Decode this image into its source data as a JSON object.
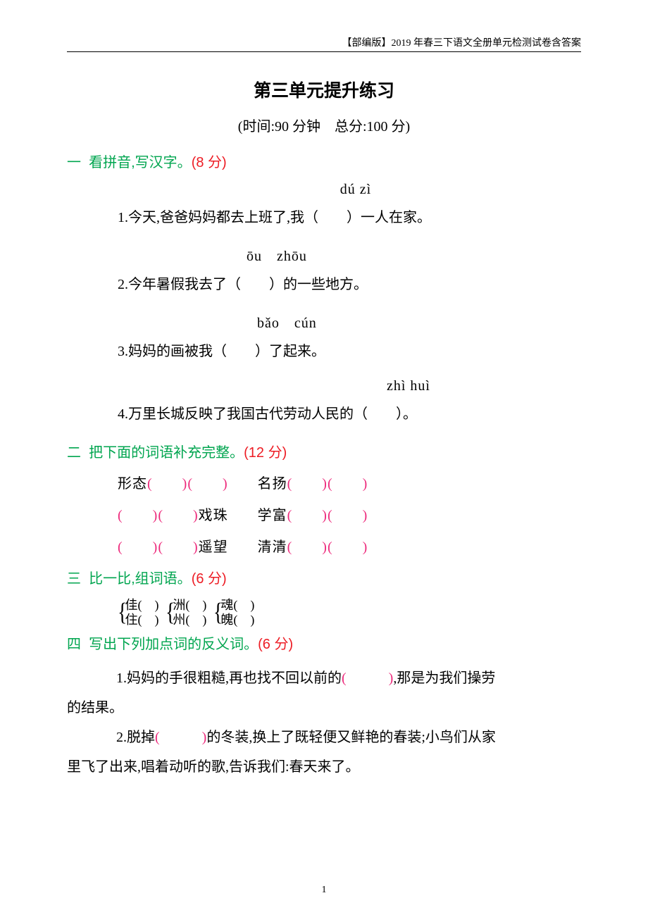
{
  "header": "【部编版】2019 年春三下语文全册单元检测试卷含答案",
  "title": "第三单元提升练习",
  "subtitle": "(时间:90 分钟　总分:100 分)",
  "section1": {
    "num": "一",
    "title": "看拼音,写汉字。",
    "points": "(8 分)",
    "q1": {
      "pinyin": "dú  zì",
      "text_before": "1.今天,爸爸妈妈都去上班了,我（",
      "text_after": "）一人在家。"
    },
    "q2": {
      "pinyin": "ōu　zhōu",
      "text_before": "2.今年暑假我去了（",
      "text_after": "）的一些地方。"
    },
    "q3": {
      "pinyin": "bǎo　cún",
      "text_before": "3.妈妈的画被我（",
      "text_after": "）了起来。"
    },
    "q4": {
      "pinyin": "zhì huì",
      "text_before": "4.万里长城反映了我国古代劳动人民的（",
      "text_after": "）。"
    }
  },
  "section2": {
    "num": "二",
    "title": "把下面的词语补充完整。",
    "points": "(12 分)",
    "line1_a": "形态",
    "line1_b": "名扬",
    "line2_a": "戏珠",
    "line2_b": "学富",
    "line3_a": "遥望",
    "line3_b": "清清",
    "paren_pair": "(　　)(　　)"
  },
  "section3": {
    "num": "三",
    "title": "比一比,组词语。",
    "points": "(6 分)",
    "pairs": {
      "p1a": "佳(　)",
      "p1b": "住(　)",
      "p2a": "洲(　)",
      "p2b": "州(　)",
      "p3a": "魂(　)",
      "p3b": "魄(　)"
    }
  },
  "section4": {
    "num": "四",
    "title": "写出下列加点词的反义词。",
    "points": "(6 分)",
    "q1_part1": "1.妈妈的手很粗糙,再也找不回以前的",
    "q1_blank": "(　　　)",
    "q1_part2": ",那是为我们操劳",
    "q1_part3": "的结果。",
    "q2_part1": "2.脱掉",
    "q2_blank": "(　　　)",
    "q2_part2": "的冬装,换上了既轻便又鲜艳的春装;小鸟们从家",
    "q2_part3": "里飞了出来,唱着动听的歌,告诉我们:春天来了。"
  },
  "page_number": "1"
}
